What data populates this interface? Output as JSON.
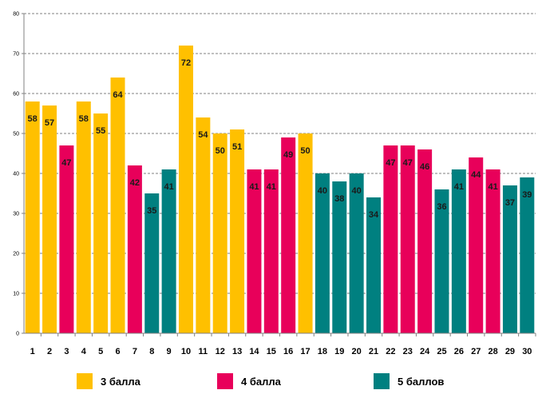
{
  "chart_data": {
    "type": "bar",
    "title": "",
    "xlabel": "",
    "ylabel": "",
    "ylim": [
      0,
      80
    ],
    "y_ticks": [
      "0",
      "10",
      "20",
      "30",
      "40",
      "50",
      "60",
      "70",
      "80"
    ],
    "grid": "dashed horizontal",
    "categories": [
      "1",
      "2",
      "3",
      "4",
      "5",
      "6",
      "7",
      "8",
      "9",
      "10",
      "11",
      "12",
      "13",
      "14",
      "15",
      "16",
      "17",
      "18",
      "19",
      "20",
      "21",
      "22",
      "23",
      "24",
      "25",
      "26",
      "27",
      "28",
      "29",
      "30"
    ],
    "values": [
      58,
      57,
      47,
      58,
      55,
      64,
      42,
      35,
      41,
      72,
      54,
      50,
      51,
      41,
      41,
      49,
      50,
      40,
      38,
      40,
      34,
      47,
      47,
      46,
      36,
      41,
      44,
      41,
      37,
      39
    ],
    "groups": [
      "3 балла",
      "3 балла",
      "4 балла",
      "3 балла",
      "3 балла",
      "3 балла",
      "4 балла",
      "5 баллов",
      "5 баллов",
      "3 балла",
      "3 балла",
      "3 балла",
      "3 балла",
      "4 балла",
      "4 балла",
      "4 балла",
      "3 балла",
      "5 баллов",
      "5 баллов",
      "5 баллов",
      "5 баллов",
      "4 балла",
      "4 балла",
      "4 балла",
      "5 баллов",
      "5 баллов",
      "4 балла",
      "4 балла",
      "5 баллов",
      "5 баллов"
    ],
    "legend": [
      {
        "name": "3 балла",
        "color": "#FFC000"
      },
      {
        "name": "4 балла",
        "color": "#E8005A"
      },
      {
        "name": "5 баллов",
        "color": "#008080"
      }
    ],
    "legend_position": "bottom"
  }
}
